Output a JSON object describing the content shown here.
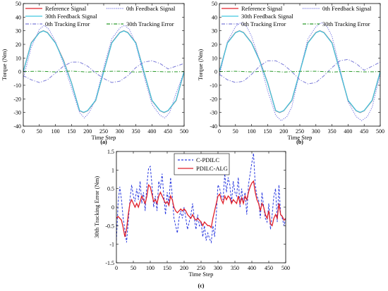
{
  "chart_data": [
    {
      "type": "line",
      "panel_label": "(a)",
      "xlabel": "Time Step",
      "ylabel": "Torque (Nm)",
      "xlim": [
        0,
        500
      ],
      "ylim": [
        -40,
        50
      ],
      "xticks": [
        "0",
        "50",
        "100",
        "150",
        "200",
        "250",
        "300",
        "350",
        "400",
        "450",
        "500"
      ],
      "yticks": [
        "-40",
        "-30",
        "-20",
        "-10",
        "0",
        "10",
        "20",
        "30",
        "40",
        "50"
      ],
      "grid": false,
      "legend_position": "top",
      "series": [
        {
          "name": "Reference Signal",
          "color": "#e0202a",
          "style": "solid",
          "x": [
            0,
            25,
            50,
            62.5,
            75,
            100,
            125,
            150,
            175,
            187.5,
            200,
            225,
            250,
            275,
            300,
            312.5,
            325,
            350,
            375,
            400,
            425,
            437.5,
            450,
            475,
            500
          ],
          "y": [
            0,
            21.2,
            28.7,
            30,
            28.7,
            21.2,
            8.3,
            -8.3,
            -28.7,
            -30,
            -28.7,
            -21.2,
            0,
            21.2,
            28.7,
            30,
            28.7,
            21.2,
            0,
            -21.2,
            -28.7,
            -30,
            -28.7,
            -21.2,
            0
          ]
        },
        {
          "name": "0th Feedback Signal",
          "color": "#6b6be0",
          "style": "dotted",
          "x": [
            0,
            25,
            50,
            65,
            80,
            100,
            125,
            150,
            175,
            190,
            205,
            225,
            250,
            275,
            300,
            315,
            330,
            350,
            375,
            400,
            425,
            440,
            455,
            475,
            500
          ],
          "y": [
            -5,
            18,
            31,
            34,
            31,
            22,
            6,
            -12,
            -30,
            -34,
            -30,
            -20,
            3,
            24,
            32,
            34,
            31,
            20,
            -3,
            -24,
            -32,
            -34,
            -30,
            -16,
            0
          ]
        },
        {
          "name": "30th Feedback Signal",
          "color": "#40c8e0",
          "style": "solid",
          "x": [
            0,
            25,
            50,
            62.5,
            75,
            100,
            125,
            150,
            175,
            187.5,
            200,
            225,
            250,
            275,
            300,
            312.5,
            325,
            350,
            375,
            400,
            425,
            437.5,
            450,
            475,
            500
          ],
          "y": [
            0,
            21,
            28.6,
            29.9,
            28.6,
            21,
            8,
            -8.4,
            -28.6,
            -29.9,
            -28.6,
            -21,
            0,
            21,
            28.6,
            29.9,
            28.6,
            21,
            0,
            -21,
            -28.6,
            -29.9,
            -28.6,
            -21,
            0
          ]
        },
        {
          "name": "0th Tracking Error",
          "color": "#7a7ad8",
          "style": "dashdot",
          "x": [
            0,
            25,
            50,
            75,
            100,
            125,
            150,
            175,
            200,
            225,
            250,
            275,
            300,
            325,
            350,
            375,
            400,
            425,
            450,
            475,
            500
          ],
          "y": [
            -3,
            -6,
            -8,
            -6,
            -1,
            4,
            7,
            7,
            4,
            -1,
            -5,
            -8,
            -7,
            -3,
            3,
            7,
            8,
            6,
            2,
            4,
            6
          ]
        },
        {
          "name": "30th Tracking Error",
          "color": "#2a9a2a",
          "style": "dashdot",
          "x": [
            0,
            50,
            100,
            150,
            200,
            250,
            300,
            350,
            400,
            450,
            500
          ],
          "y": [
            0,
            0.3,
            -0.2,
            0.4,
            -0.3,
            0.2,
            0.3,
            -0.3,
            0.2,
            -0.2,
            0
          ]
        }
      ]
    },
    {
      "type": "line",
      "panel_label": "(b)",
      "xlabel": "Time Step",
      "ylabel": "Torque (Nm)",
      "xlim": [
        0,
        500
      ],
      "ylim": [
        -40,
        50
      ],
      "xticks": [
        "0",
        "50",
        "100",
        "150",
        "200",
        "250",
        "300",
        "350",
        "400",
        "450",
        "500"
      ],
      "yticks": [
        "-40",
        "-30",
        "-20",
        "-10",
        "0",
        "10",
        "20",
        "30",
        "40",
        "50"
      ],
      "grid": false,
      "legend_position": "top",
      "series": [
        {
          "name": "Reference Signal",
          "color": "#e0202a",
          "style": "solid",
          "x": [
            0,
            25,
            50,
            62.5,
            75,
            100,
            125,
            150,
            175,
            187.5,
            200,
            225,
            250,
            275,
            300,
            312.5,
            325,
            350,
            375,
            400,
            425,
            437.5,
            450,
            475,
            500
          ],
          "y": [
            0,
            21.2,
            28.7,
            30,
            28.7,
            21.2,
            8.3,
            -8.3,
            -28.7,
            -30,
            -28.7,
            -21.2,
            0,
            21.2,
            28.7,
            30,
            28.7,
            21.2,
            0,
            -21.2,
            -28.7,
            -30,
            -28.7,
            -21.2,
            0
          ]
        },
        {
          "name": "0th Feedback Signal",
          "color": "#6b6be0",
          "style": "dotted",
          "x": [
            0,
            25,
            50,
            67,
            85,
            100,
            125,
            150,
            175,
            192,
            210,
            225,
            250,
            275,
            300,
            317,
            335,
            350,
            375,
            400,
            425,
            442,
            460,
            475,
            500
          ],
          "y": [
            -3,
            22,
            33,
            36,
            33,
            26,
            8,
            -14,
            -32,
            -36,
            -33,
            -26,
            0,
            24,
            33,
            36,
            33,
            26,
            2,
            -22,
            -33,
            -36,
            -33,
            -26,
            -2
          ]
        },
        {
          "name": "30th Feedback Signal",
          "color": "#40c8e0",
          "style": "solid",
          "x": [
            0,
            25,
            50,
            62.5,
            75,
            100,
            125,
            150,
            175,
            187.5,
            200,
            225,
            250,
            275,
            300,
            312.5,
            325,
            350,
            375,
            400,
            425,
            437.5,
            450,
            475,
            500
          ],
          "y": [
            0,
            21,
            28.6,
            29.9,
            28.6,
            21,
            8,
            -8.4,
            -28.6,
            -29.9,
            -28.6,
            -21,
            0,
            21,
            28.6,
            29.9,
            28.6,
            21,
            0,
            -21,
            -28.6,
            -29.9,
            -28.6,
            -21,
            0
          ]
        },
        {
          "name": "0th Tracking Error",
          "color": "#7a7ad8",
          "style": "dashdot",
          "x": [
            0,
            25,
            50,
            75,
            100,
            125,
            150,
            175,
            200,
            225,
            250,
            275,
            300,
            325,
            350,
            375,
            400,
            425,
            450,
            475,
            500
          ],
          "y": [
            -2,
            -6,
            -8,
            -7,
            -2,
            4,
            8,
            8,
            5,
            0,
            -6,
            -9,
            -8,
            -3,
            3,
            8,
            9,
            6,
            1,
            4,
            7
          ]
        },
        {
          "name": "30th Tracking Error",
          "color": "#2a9a2a",
          "style": "dashdot",
          "x": [
            0,
            50,
            100,
            150,
            200,
            250,
            300,
            350,
            400,
            450,
            500
          ],
          "y": [
            0,
            0.3,
            -0.2,
            0.4,
            -0.3,
            0.2,
            0.3,
            -0.3,
            0.2,
            -0.2,
            0
          ]
        }
      ]
    },
    {
      "type": "line",
      "panel_label": "(c)",
      "xlabel": "Time Step",
      "ylabel": "30th Tracking Error (Nm)",
      "xlim": [
        0,
        500
      ],
      "ylim": [
        -1.5,
        1.5
      ],
      "xticks": [
        "0",
        "50",
        "100",
        "150",
        "200",
        "250",
        "300",
        "350",
        "400",
        "450",
        "500"
      ],
      "yticks": [
        "-1.5",
        "-1",
        "-0.5",
        "0",
        "0.5",
        "1",
        "1.5"
      ],
      "grid": false,
      "legend_position": "top",
      "series": [
        {
          "name": "C-PDILC",
          "color": "#2a3ae0",
          "style": "dashed",
          "x": [
            0,
            5,
            10,
            15,
            20,
            25,
            30,
            35,
            40,
            45,
            50,
            55,
            60,
            65,
            70,
            75,
            80,
            85,
            90,
            95,
            100,
            105,
            110,
            115,
            120,
            125,
            130,
            135,
            140,
            145,
            150,
            155,
            160,
            165,
            170,
            175,
            180,
            185,
            190,
            195,
            200,
            205,
            210,
            215,
            220,
            225,
            230,
            235,
            240,
            245,
            250,
            255,
            260,
            265,
            270,
            275,
            280,
            285,
            290,
            295,
            300,
            305,
            310,
            315,
            320,
            325,
            330,
            335,
            340,
            345,
            350,
            355,
            360,
            365,
            370,
            375,
            380,
            385,
            390,
            395,
            400,
            405,
            410,
            415,
            420,
            425,
            430,
            435,
            440,
            445,
            450,
            455,
            460,
            465,
            470,
            475,
            480,
            485,
            490,
            495,
            500
          ],
          "y": [
            -0.9,
            0.1,
            0.55,
            0.2,
            -0.3,
            -0.6,
            -0.95,
            -0.4,
            0.2,
            0.6,
            0.3,
            0.15,
            0.5,
            0.2,
            0.7,
            0.1,
            0.4,
            -0.1,
            0.6,
            1.05,
            1.1,
            0.6,
            0.0,
            0.3,
            -0.1,
            0.7,
            0.5,
            0.9,
            0.3,
            -0.2,
            0.4,
            0.1,
            0.8,
            0.3,
            -0.3,
            -0.5,
            -0.7,
            -0.3,
            -0.1,
            -0.3,
            0.0,
            -0.3,
            -0.6,
            -0.4,
            -0.2,
            0.1,
            -0.3,
            -0.6,
            -0.2,
            -0.5,
            -0.4,
            -0.8,
            -0.5,
            -0.9,
            -0.7,
            -0.85,
            -0.95,
            -0.5,
            -0.8,
            -0.2,
            0.6,
            0.5,
            0.3,
            0.2,
            0.9,
            0.4,
            0.8,
            0.6,
            0.1,
            0.7,
            0.4,
            0.3,
            0.8,
            0.0,
            0.5,
            0.1,
            0.4,
            -0.2,
            0.6,
            0.9,
            1.2,
            1.45,
            0.6,
            0.3,
            0.2,
            -0.3,
            0.4,
            0.0,
            -0.3,
            -0.4,
            0.1,
            -0.6,
            -0.2,
            0.3,
            0.5,
            -0.4,
            0.6,
            -0.2,
            -0.3,
            -0.5,
            -0.3
          ]
        },
        {
          "name": "PDILC-ALG",
          "color": "#e0202a",
          "style": "solid",
          "x": [
            0,
            5,
            10,
            15,
            20,
            25,
            30,
            35,
            40,
            45,
            50,
            55,
            60,
            65,
            70,
            75,
            80,
            85,
            90,
            95,
            100,
            105,
            110,
            115,
            120,
            125,
            130,
            135,
            140,
            145,
            150,
            155,
            160,
            165,
            170,
            175,
            180,
            185,
            190,
            195,
            200,
            205,
            210,
            215,
            220,
            225,
            230,
            235,
            240,
            245,
            250,
            255,
            260,
            265,
            270,
            275,
            280,
            285,
            290,
            295,
            300,
            305,
            310,
            315,
            320,
            325,
            330,
            335,
            340,
            345,
            350,
            355,
            360,
            365,
            370,
            375,
            380,
            385,
            390,
            395,
            400,
            405,
            410,
            415,
            420,
            425,
            430,
            435,
            440,
            445,
            450,
            455,
            460,
            465,
            470,
            475,
            480,
            485,
            490,
            495,
            500
          ],
          "y": [
            -0.3,
            -0.25,
            -0.3,
            -0.35,
            -0.55,
            -0.8,
            -0.6,
            -0.2,
            0.1,
            0.2,
            0.1,
            0.0,
            0.1,
            0.0,
            0.15,
            0.3,
            0.2,
            0.1,
            0.3,
            0.6,
            0.55,
            0.35,
            0.15,
            0.2,
            0.1,
            0.3,
            0.4,
            0.3,
            0.2,
            0.1,
            0.15,
            0.05,
            0.3,
            0.2,
            0.0,
            -0.1,
            -0.15,
            -0.1,
            -0.05,
            -0.1,
            -0.05,
            -0.1,
            -0.2,
            -0.25,
            -0.3,
            -0.2,
            -0.3,
            -0.35,
            -0.3,
            -0.35,
            -0.4,
            -0.5,
            -0.4,
            -0.45,
            -0.5,
            -0.5,
            -0.55,
            -0.3,
            -0.1,
            0.1,
            0.3,
            0.35,
            0.2,
            0.1,
            0.3,
            0.2,
            0.3,
            0.25,
            0.1,
            0.2,
            0.15,
            0.1,
            0.3,
            0.1,
            0.25,
            0.1,
            0.3,
            0.2,
            0.4,
            0.55,
            0.65,
            0.7,
            0.4,
            0.2,
            0.1,
            -0.1,
            0.1,
            0.0,
            -0.2,
            -0.3,
            -0.1,
            -0.45,
            -0.5,
            -0.3,
            -0.2,
            -0.3,
            0.1,
            -0.2,
            -0.25,
            -0.35,
            -0.3
          ]
        }
      ]
    }
  ]
}
